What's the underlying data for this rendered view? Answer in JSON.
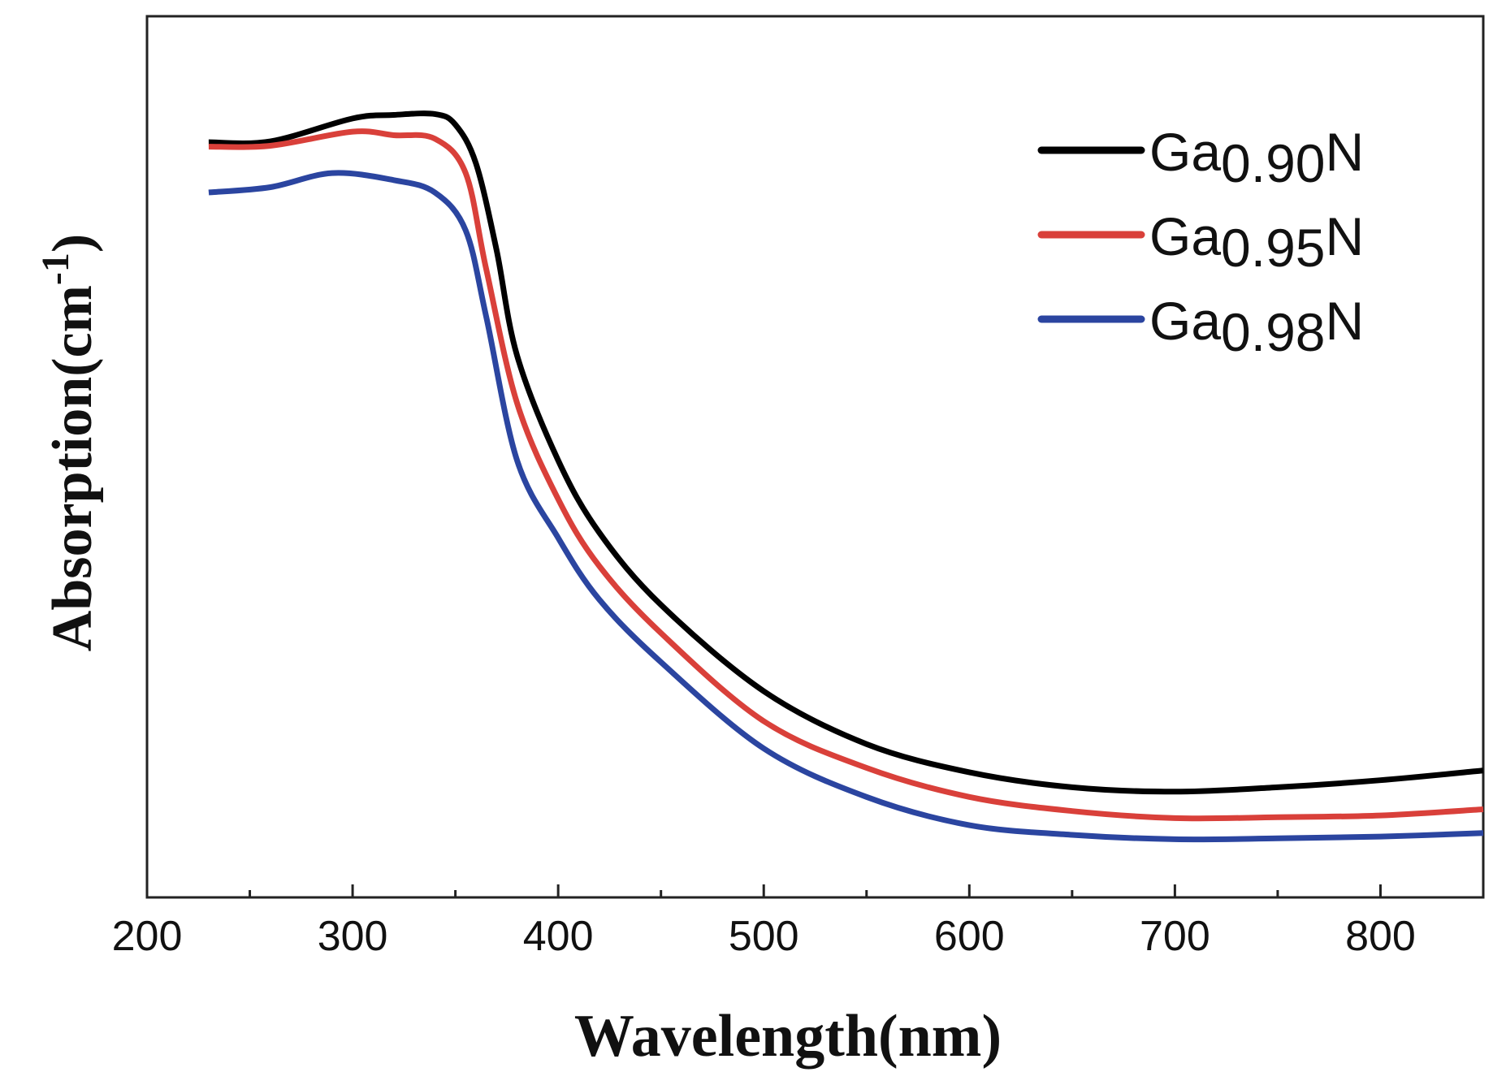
{
  "chart_data": {
    "type": "line",
    "title": "",
    "xlabel": "Wavelength(nm)",
    "ylabel": {
      "main": "Absorption(cm",
      "sup": "-1",
      "close": ")"
    },
    "xlim": [
      200,
      850
    ],
    "ylim": [
      0,
      1
    ],
    "y_units": "arbitrary (no y tick labels shown)",
    "xticks": [
      200,
      300,
      400,
      500,
      600,
      700,
      800
    ],
    "xtick_labels": [
      "200",
      "300",
      "400",
      "500",
      "600",
      "700",
      "800"
    ],
    "minor_xticks": [
      250,
      350,
      450,
      550,
      650,
      750
    ],
    "grid": false,
    "legend_position": "top-right",
    "series": [
      {
        "name": "Ga0.90N",
        "label": {
          "a": "Ga",
          "b": "0.90",
          "c": "N"
        },
        "color": "#000000",
        "x": [
          230,
          260,
          300,
          320,
          340,
          350,
          360,
          370,
          380,
          400,
          420,
          450,
          500,
          550,
          600,
          650,
          700,
          750,
          800,
          850
        ],
        "y": [
          0.857,
          0.858,
          0.884,
          0.888,
          0.889,
          0.877,
          0.833,
          0.735,
          0.615,
          0.496,
          0.414,
          0.332,
          0.234,
          0.174,
          0.142,
          0.125,
          0.12,
          0.125,
          0.133,
          0.144
        ]
      },
      {
        "name": "Ga0.95N",
        "label": {
          "a": "Ga",
          "b": "0.95",
          "c": "N"
        },
        "color": "#d9403a",
        "x": [
          230,
          260,
          300,
          320,
          340,
          355,
          365,
          380,
          400,
          420,
          450,
          500,
          550,
          600,
          650,
          700,
          750,
          800,
          850
        ],
        "y": [
          0.852,
          0.853,
          0.869,
          0.865,
          0.861,
          0.822,
          0.713,
          0.561,
          0.452,
          0.376,
          0.3,
          0.2,
          0.147,
          0.114,
          0.098,
          0.09,
          0.091,
          0.093,
          0.1
        ]
      },
      {
        "name": "Ga0.98N",
        "label": {
          "a": "Ga",
          "b": "0.98",
          "c": "N"
        },
        "color": "#2b45a0",
        "x": [
          230,
          260,
          290,
          320,
          340,
          355,
          365,
          380,
          400,
          420,
          450,
          500,
          550,
          600,
          650,
          700,
          750,
          800,
          850
        ],
        "y": [
          0.8,
          0.806,
          0.822,
          0.814,
          0.8,
          0.757,
          0.659,
          0.496,
          0.408,
          0.338,
          0.267,
          0.169,
          0.114,
          0.082,
          0.071,
          0.066,
          0.067,
          0.069,
          0.073
        ]
      }
    ]
  }
}
